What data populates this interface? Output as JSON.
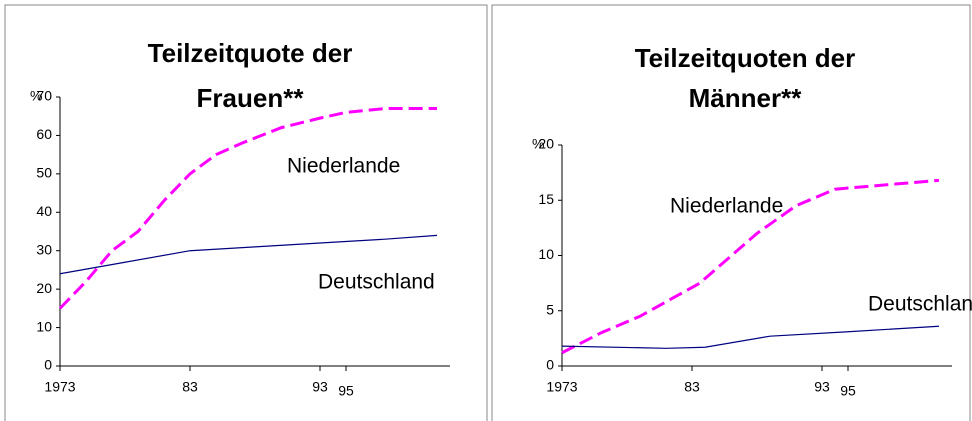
{
  "chart_data": [
    {
      "type": "line",
      "title": [
        "Teilzeitquote der",
        "Frauen**"
      ],
      "y_label": "%",
      "xlim": [
        1973,
        2003
      ],
      "xticks": [
        1973,
        {
          "value": 1983,
          "label": "83"
        },
        {
          "value": 1993,
          "label": "93"
        },
        {
          "value": 1995,
          "label": "95"
        }
      ],
      "ylim": [
        0,
        70
      ],
      "yticks": [
        0,
        10,
        20,
        30,
        40,
        50,
        60,
        70
      ],
      "series": [
        {
          "name": "Niederlande",
          "color": "#ff00ff",
          "dashed": true,
          "x": [
            1973,
            1975,
            1977,
            1979,
            1981,
            1983,
            1985,
            1987,
            1990,
            1993,
            1995,
            1998,
            2002
          ],
          "values": [
            15,
            22,
            30,
            35,
            43,
            50,
            55,
            58,
            62,
            64.5,
            66,
            67,
            67
          ]
        },
        {
          "name": "Deutschland",
          "color": "#000080",
          "dashed": false,
          "x": [
            1973,
            1978,
            1983,
            1988,
            1993,
            1998,
            2002
          ],
          "values": [
            24,
            27,
            30,
            31,
            32,
            33,
            34
          ]
        }
      ]
    },
    {
      "type": "line",
      "title": [
        "Teilzeitquoten der",
        "Männer**"
      ],
      "y_label": "%",
      "xlim": [
        1973,
        2003
      ],
      "xticks": [
        1973,
        {
          "value": 1983,
          "label": "83"
        },
        {
          "value": 1993,
          "label": "93"
        },
        {
          "value": 1995,
          "label": "95"
        }
      ],
      "ylim": [
        0,
        20
      ],
      "yticks": [
        0,
        5,
        10,
        15,
        20
      ],
      "series": [
        {
          "name": "Niederlande",
          "color": "#ff00ff",
          "dashed": true,
          "x": [
            1973,
            1976,
            1979,
            1983.6,
            1988,
            1991,
            1994,
            1999,
            2002
          ],
          "values": [
            1.2,
            3,
            4.5,
            7.5,
            12,
            14.5,
            16,
            16.5,
            16.8
          ]
        },
        {
          "name": "Deutschland",
          "color": "#000080",
          "dashed": false,
          "x": [
            1973,
            1981,
            1984,
            1989,
            1995,
            2002
          ],
          "values": [
            1.8,
            1.6,
            1.7,
            2.7,
            3.1,
            3.6
          ]
        }
      ]
    }
  ]
}
